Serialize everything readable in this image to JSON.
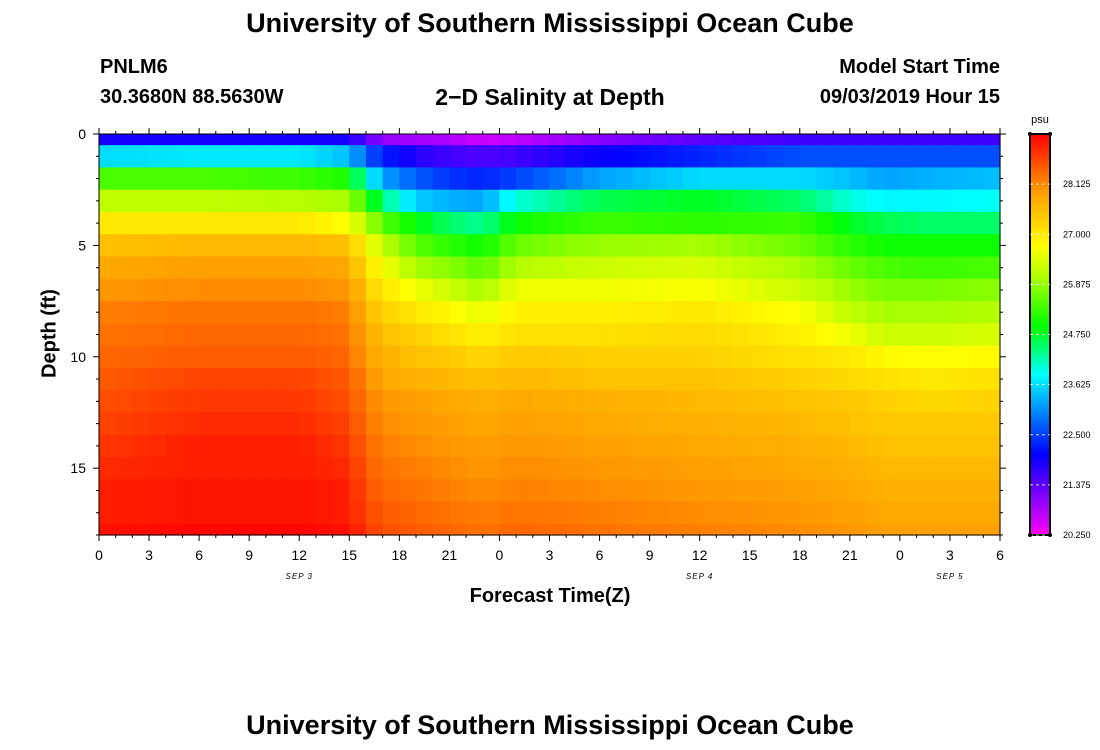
{
  "header": {
    "title": "University of Southern Mississippi Ocean Cube",
    "station_id": "PNLM6",
    "coordinates": "30.3680N 88.5630W",
    "subtitle": "2−D Salinity at Depth",
    "model_start_label": "Model Start Time",
    "model_start_value": "09/03/2019 Hour 15"
  },
  "footer": {
    "title": "University of Southern Mississippi Ocean Cube"
  },
  "chart_data": {
    "type": "heatmap",
    "title": "2−D Salinity at Depth",
    "xlabel": "Forecast Time(Z)",
    "ylabel": "Depth (ft)",
    "x_range_hours": [
      0,
      54
    ],
    "y_range_ft": [
      0,
      18
    ],
    "x_tick_labels": [
      "0",
      "3",
      "6",
      "9",
      "12",
      "15",
      "18",
      "21",
      "0",
      "3",
      "6",
      "9",
      "12",
      "15",
      "18",
      "21",
      "0",
      "3",
      "6"
    ],
    "y_tick_labels": [
      "0",
      "5",
      "10",
      "15"
    ],
    "y_tick_values": [
      0,
      5,
      10,
      15
    ],
    "date_labels": [
      {
        "text": "SEP 3",
        "hour": 12
      },
      {
        "text": "SEP 4",
        "hour": 36
      },
      {
        "text": "SEP 5",
        "hour": 51
      }
    ],
    "colorbar": {
      "unit": "psu",
      "min": 20.25,
      "max": 29.25,
      "tick_labels": [
        "28.125",
        "27.000",
        "25.875",
        "24.750",
        "23.625",
        "22.500",
        "21.375",
        "20.250"
      ],
      "tick_values": [
        28.125,
        27.0,
        25.875,
        24.75,
        23.625,
        22.5,
        21.375,
        20.25
      ]
    },
    "salinity_profiles": {
      "depths_ft": [
        0.25,
        1,
        2,
        3,
        4,
        5,
        6,
        7,
        8,
        9,
        10,
        11,
        12,
        13,
        14,
        15,
        16,
        17,
        17.75
      ],
      "times_hours": [
        0,
        6,
        12,
        15,
        16,
        17,
        19,
        21,
        23,
        25,
        30,
        36,
        42,
        45,
        47,
        50,
        54
      ],
      "values_psu": [
        [
          21.9,
          21.9,
          21.9,
          21.9,
          21.4,
          21.0,
          20.9,
          20.8,
          20.6,
          20.7,
          21.1,
          21.4,
          21.6,
          21.6,
          21.6,
          21.6,
          21.6
        ],
        [
          23.6,
          23.7,
          23.7,
          23.4,
          22.7,
          22.3,
          21.8,
          21.6,
          21.5,
          21.6,
          22.0,
          22.3,
          22.6,
          22.6,
          22.6,
          22.6,
          22.6
        ],
        [
          25.4,
          25.4,
          25.3,
          25.1,
          24.0,
          23.2,
          22.7,
          22.4,
          22.3,
          22.5,
          23.2,
          23.6,
          23.6,
          23.4,
          23.2,
          23.3,
          23.4
        ],
        [
          26.2,
          26.2,
          26.1,
          26.0,
          25.2,
          24.4,
          23.5,
          23.3,
          23.2,
          24.0,
          24.6,
          24.8,
          24.5,
          24.0,
          23.8,
          23.8,
          23.9
        ],
        [
          27.0,
          27.0,
          27.0,
          26.7,
          26.1,
          25.5,
          24.9,
          24.5,
          24.3,
          25.0,
          25.3,
          25.2,
          25.3,
          24.8,
          24.6,
          24.5,
          24.5
        ],
        [
          27.5,
          27.6,
          27.6,
          27.5,
          26.8,
          26.2,
          25.5,
          25.2,
          25.0,
          25.6,
          25.9,
          26.0,
          25.6,
          25.2,
          25.0,
          25.0,
          25.0
        ],
        [
          27.8,
          27.9,
          27.9,
          27.8,
          27.1,
          26.7,
          26.0,
          25.8,
          25.5,
          26.1,
          26.3,
          26.4,
          26.0,
          25.6,
          25.4,
          25.3,
          25.4
        ],
        [
          28.0,
          28.1,
          28.1,
          28.0,
          27.4,
          27.0,
          26.6,
          26.3,
          26.0,
          26.6,
          26.6,
          26.7,
          26.3,
          25.9,
          25.7,
          25.7,
          25.8
        ],
        [
          28.2,
          28.3,
          28.3,
          28.2,
          27.6,
          27.3,
          27.0,
          26.8,
          26.5,
          26.9,
          26.9,
          27.0,
          26.7,
          26.2,
          26.0,
          26.0,
          26.1
        ],
        [
          28.3,
          28.4,
          28.4,
          28.3,
          27.8,
          27.5,
          27.3,
          27.1,
          26.9,
          27.1,
          27.1,
          27.2,
          26.9,
          26.6,
          26.3,
          26.3,
          26.4
        ],
        [
          28.4,
          28.5,
          28.5,
          28.4,
          27.9,
          27.7,
          27.5,
          27.4,
          27.2,
          27.4,
          27.3,
          27.3,
          27.1,
          27.0,
          26.8,
          26.7,
          26.8
        ],
        [
          28.5,
          28.7,
          28.7,
          28.5,
          28.1,
          27.8,
          27.7,
          27.6,
          27.5,
          27.6,
          27.5,
          27.5,
          27.3,
          27.2,
          27.1,
          27.0,
          27.1
        ],
        [
          28.6,
          28.8,
          28.8,
          28.6,
          28.2,
          28.0,
          27.9,
          27.8,
          27.7,
          27.8,
          27.7,
          27.6,
          27.5,
          27.4,
          27.3,
          27.2,
          27.3
        ],
        [
          28.7,
          28.9,
          28.9,
          28.7,
          28.3,
          28.1,
          28.0,
          27.9,
          27.8,
          27.9,
          27.8,
          27.7,
          27.6,
          27.5,
          27.4,
          27.4,
          27.4
        ],
        [
          28.8,
          29.0,
          29.0,
          28.8,
          28.4,
          28.2,
          28.1,
          28.0,
          27.9,
          28.0,
          27.9,
          27.8,
          27.7,
          27.6,
          27.5,
          27.5,
          27.5
        ],
        [
          28.9,
          29.0,
          29.0,
          28.9,
          28.5,
          28.3,
          28.2,
          28.1,
          28.0,
          28.1,
          28.0,
          27.9,
          27.8,
          27.7,
          27.6,
          27.6,
          27.6
        ],
        [
          29.0,
          29.1,
          29.1,
          29.0,
          28.6,
          28.4,
          28.3,
          28.2,
          28.1,
          28.2,
          28.1,
          28.0,
          27.9,
          27.8,
          27.7,
          27.7,
          27.7
        ],
        [
          29.0,
          29.1,
          29.1,
          29.0,
          28.7,
          28.5,
          28.4,
          28.3,
          28.2,
          28.3,
          28.2,
          28.1,
          28.0,
          27.9,
          27.8,
          27.8,
          27.8
        ],
        [
          29.1,
          29.2,
          29.2,
          29.1,
          28.8,
          28.6,
          28.5,
          28.4,
          28.3,
          28.4,
          28.3,
          28.2,
          28.1,
          28.0,
          27.9,
          27.9,
          27.9
        ]
      ]
    }
  }
}
